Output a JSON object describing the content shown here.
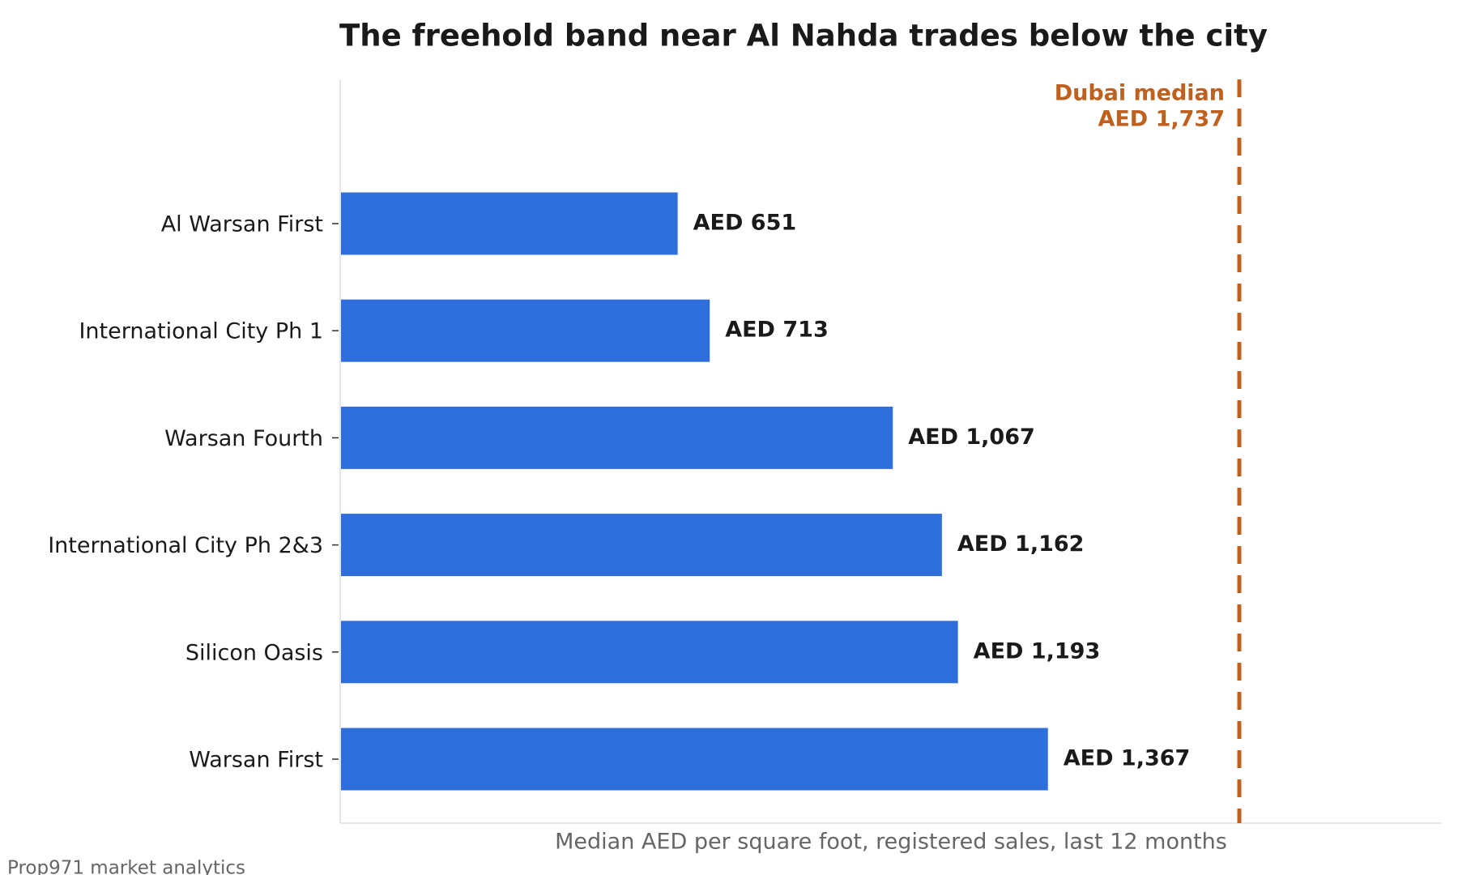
{
  "chart_data": {
    "type": "barh",
    "title": "The freehold band near Al Nahda trades below the city",
    "xlabel": "Median AED per square foot, registered sales, last 12 months",
    "source": "Prop971 market analytics",
    "categories": [
      "Al Warsan First",
      "International City Ph 1",
      "Warsan Fourth",
      "International City Ph 2&3",
      "Silicon Oasis",
      "Warsan First"
    ],
    "values": [
      651,
      713,
      1067,
      1162,
      1193,
      1367
    ],
    "value_labels": [
      "AED 651",
      "AED 713",
      "AED 1,067",
      "AED 1,162",
      "AED 1,193",
      "AED 1,367"
    ],
    "color": "#2f6fdb",
    "xlim": [
      0,
      2127
    ],
    "reference_line": {
      "value": 1737,
      "label_lines": [
        "Dubai median",
        "AED 1,737"
      ],
      "color": "#c0601f"
    }
  }
}
